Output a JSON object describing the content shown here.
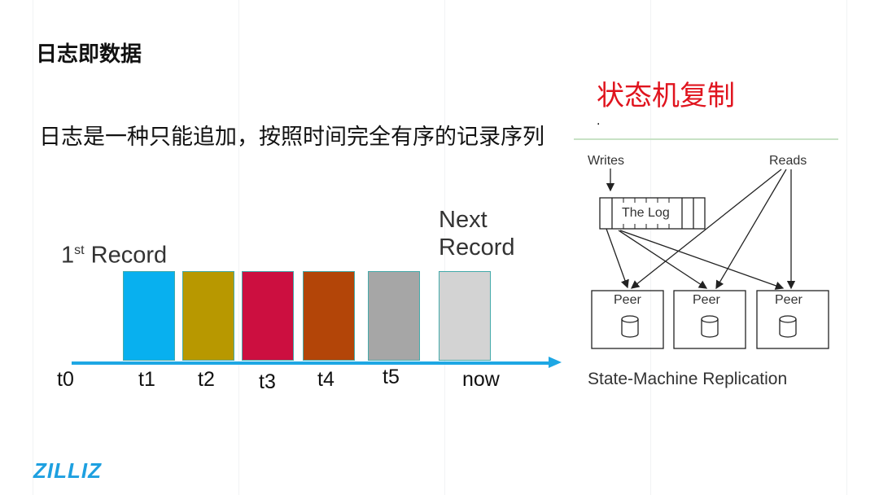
{
  "slide": {
    "title": "日志即数据",
    "description": "日志是一种只能追加，按照时间完全有序的记录序列",
    "logo": "ZILLIZ"
  },
  "timeline": {
    "first_record_sup": "st",
    "first_record_num": "1",
    "first_record_label": "Record",
    "next_record_line1": "Next",
    "next_record_line2": "Record",
    "records": [
      {
        "color": "#08b0ef"
      },
      {
        "color": "#b89800"
      },
      {
        "color": "#cc0f40"
      },
      {
        "color": "#b34508"
      },
      {
        "color": "#a6a6a6"
      },
      {
        "color": "#d3d3d3"
      }
    ],
    "axis_color": "#1ea7e4",
    "ticks": [
      "t0",
      "t1",
      "t2",
      "t3",
      "t4",
      "t5",
      "now"
    ]
  },
  "replication": {
    "heading": "状态机复制",
    "dot": ".",
    "writes": "Writes",
    "reads": "Reads",
    "log_label": "The Log",
    "peers": [
      "Peer",
      "Peer",
      "Peer"
    ],
    "caption": "State-Machine Replication"
  }
}
